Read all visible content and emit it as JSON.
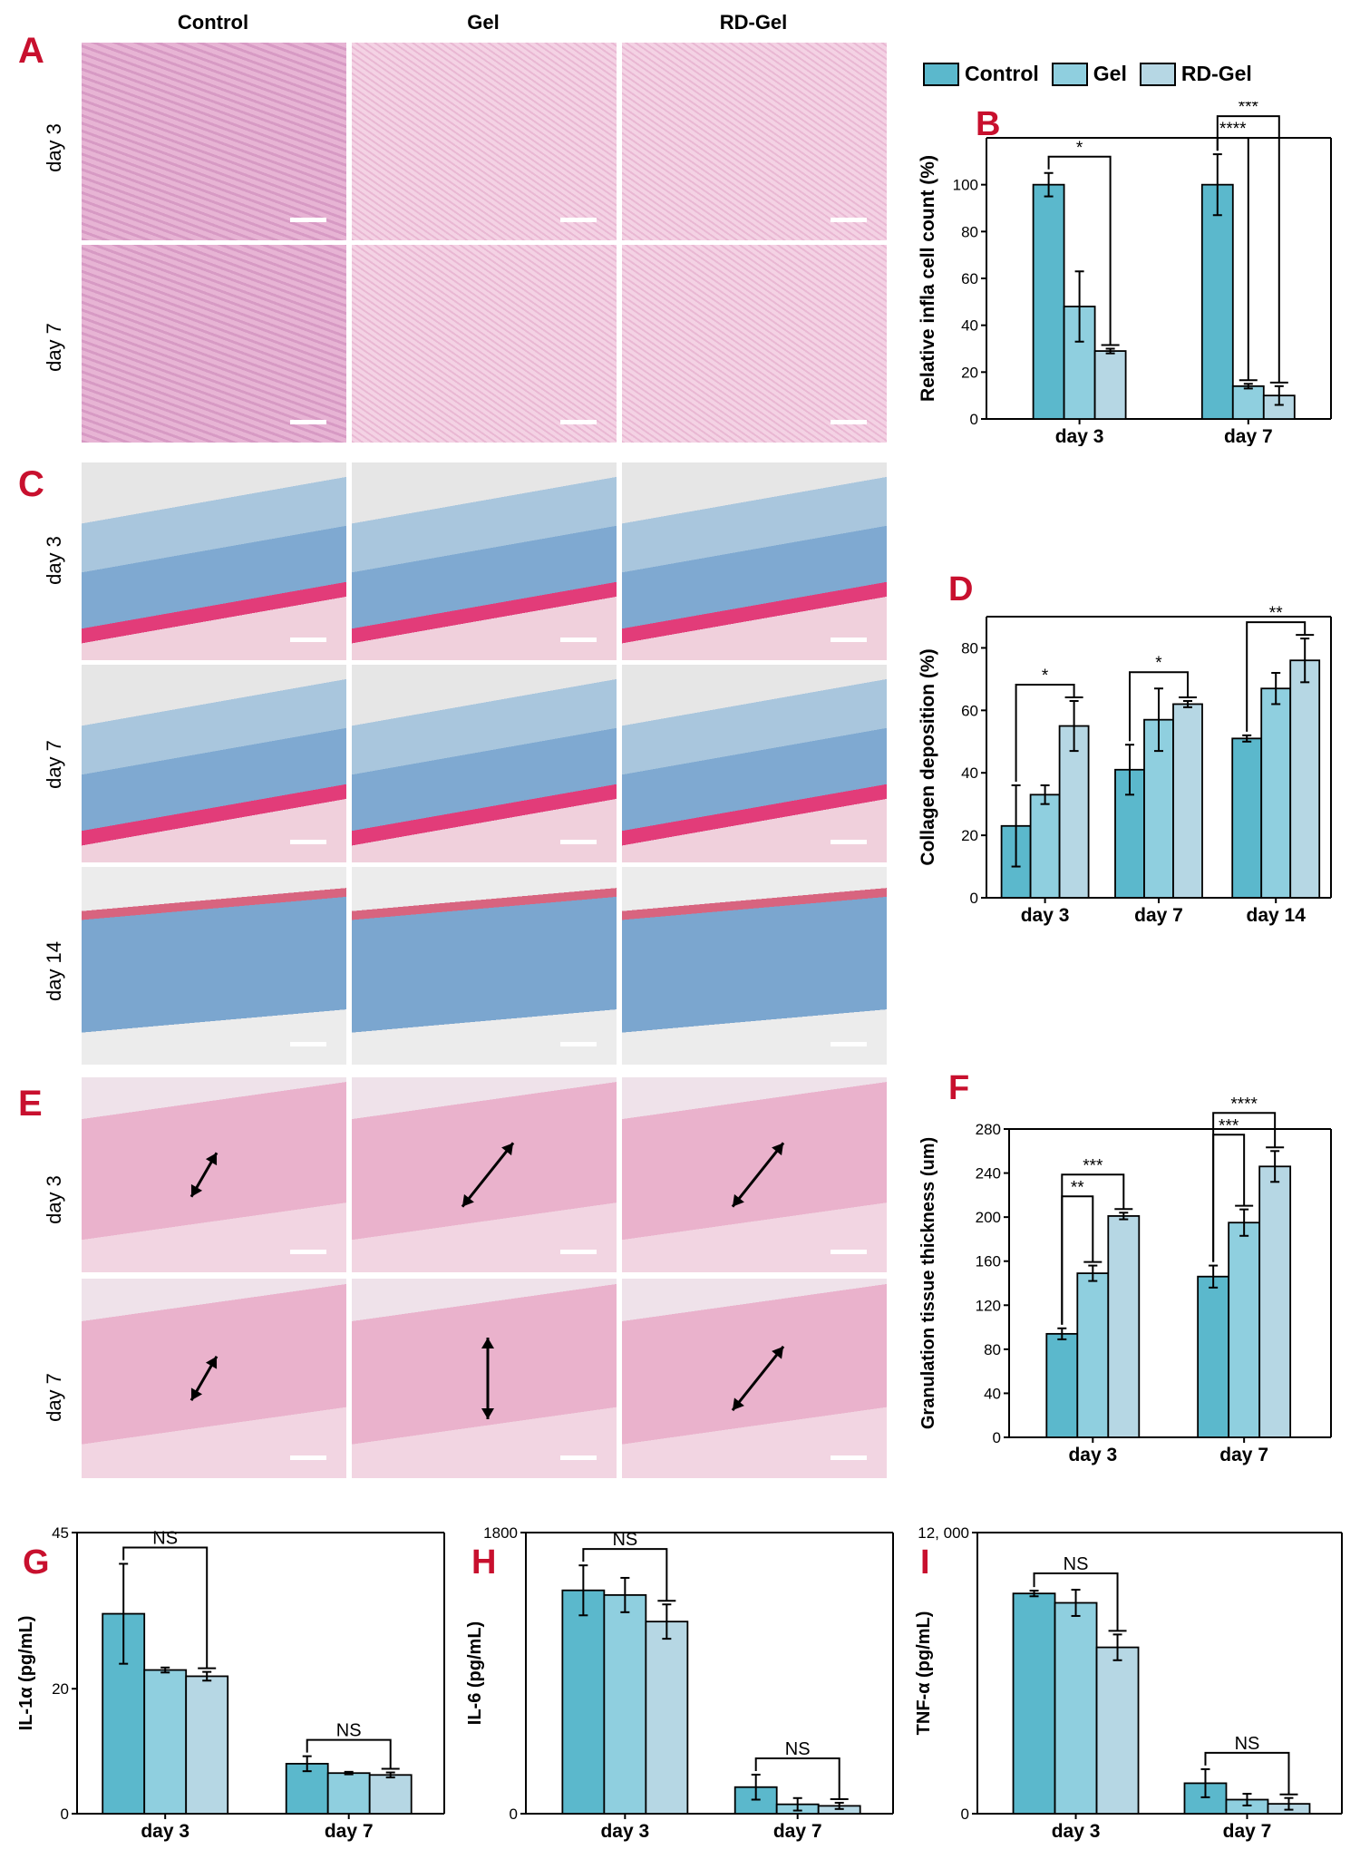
{
  "columns": [
    "Control",
    "Gel",
    "RD-Gel"
  ],
  "panels": {
    "A": {
      "letter": "A",
      "rows": [
        "day 3",
        "day 7"
      ]
    },
    "C": {
      "letter": "C",
      "rows": [
        "day 3",
        "day 7",
        "day 14"
      ]
    },
    "E": {
      "letter": "E",
      "rows": [
        "day 3",
        "day 7"
      ]
    }
  },
  "legend": {
    "items": [
      {
        "label": "Control",
        "color": "#5bb8cc"
      },
      {
        "label": "Gel",
        "color": "#8fcfdf"
      },
      {
        "label": "RD-Gel",
        "color": "#b6d7e4"
      }
    ]
  },
  "colors": {
    "control": "#5bb8cc",
    "gel": "#8fcfdf",
    "rdgel": "#b6d7e4",
    "letter": "#c8102e",
    "he_stain": "#e4a6c6",
    "masson_blue": "#7fa9d1"
  },
  "chart_data": [
    {
      "id": "B",
      "letter": "B",
      "type": "bar",
      "categories": [
        "day 3",
        "day 7"
      ],
      "series": [
        {
          "name": "Control",
          "values": [
            100,
            100
          ],
          "errors": [
            5,
            13
          ]
        },
        {
          "name": "Gel",
          "values": [
            48,
            14
          ],
          "errors": [
            15,
            1
          ]
        },
        {
          "name": "RD-Gel",
          "values": [
            29,
            10
          ],
          "errors": [
            1,
            4
          ]
        }
      ],
      "ylabel": "Relative infla cell count (%)",
      "ylim": [
        0,
        120
      ],
      "yticks": [
        0,
        20,
        40,
        60,
        80,
        100
      ],
      "significance": [
        {
          "text": "*",
          "group": 0,
          "from": 0,
          "to": 2
        },
        {
          "text": "****",
          "group": 1,
          "from": 0,
          "to": 1
        },
        {
          "text": "***",
          "group": 1,
          "from": 0,
          "to": 2
        }
      ]
    },
    {
      "id": "D",
      "letter": "D",
      "type": "bar",
      "categories": [
        "day 3",
        "day 7",
        "day 14"
      ],
      "series": [
        {
          "name": "Control",
          "values": [
            23,
            41,
            51
          ],
          "errors": [
            13,
            8,
            1
          ]
        },
        {
          "name": "Gel",
          "values": [
            33,
            57,
            67
          ],
          "errors": [
            3,
            10,
            5
          ]
        },
        {
          "name": "RD-Gel",
          "values": [
            55,
            62,
            76
          ],
          "errors": [
            8,
            1,
            7
          ]
        }
      ],
      "ylabel": "Collagen deposition (%)",
      "ylim": [
        0,
        90
      ],
      "yticks": [
        0,
        20,
        40,
        60,
        80
      ],
      "significance": [
        {
          "text": "*",
          "group": 0,
          "from": 0,
          "to": 2
        },
        {
          "text": "*",
          "group": 1,
          "from": 0,
          "to": 2
        },
        {
          "text": "**",
          "group": 2,
          "from": 0,
          "to": 2
        }
      ]
    },
    {
      "id": "F",
      "letter": "F",
      "type": "bar",
      "categories": [
        "day 3",
        "day 7"
      ],
      "series": [
        {
          "name": "Control",
          "values": [
            94,
            146
          ],
          "errors": [
            5,
            10
          ]
        },
        {
          "name": "Gel",
          "values": [
            149,
            195
          ],
          "errors": [
            7,
            12
          ]
        },
        {
          "name": "RD-Gel",
          "values": [
            201,
            246
          ],
          "errors": [
            3,
            14
          ]
        }
      ],
      "ylabel": "Granulation tissue thickness (um)",
      "ylim": [
        0,
        280
      ],
      "yticks": [
        0,
        40,
        80,
        120,
        160,
        200,
        240,
        280
      ],
      "significance": [
        {
          "text": "**",
          "group": 0,
          "from": 0,
          "to": 1
        },
        {
          "text": "***",
          "group": 0,
          "from": 0,
          "to": 2
        },
        {
          "text": "***",
          "group": 1,
          "from": 0,
          "to": 1
        },
        {
          "text": "****",
          "group": 1,
          "from": 0,
          "to": 2
        }
      ]
    },
    {
      "id": "G",
      "letter": "G",
      "type": "bar",
      "categories": [
        "day 3",
        "day 7"
      ],
      "series": [
        {
          "name": "Control",
          "values": [
            32,
            8
          ],
          "errors": [
            8,
            1.2
          ]
        },
        {
          "name": "Gel",
          "values": [
            23,
            6.5
          ],
          "errors": [
            0.4,
            0.2
          ]
        },
        {
          "name": "RD-Gel",
          "values": [
            22,
            6.2
          ],
          "errors": [
            0.7,
            0.4
          ]
        }
      ],
      "ylabel": "IL-1α (pg/mL)",
      "ylim": [
        0,
        45
      ],
      "yticks": [
        0,
        20,
        45
      ],
      "significance": [
        {
          "text": "NS",
          "group": 0,
          "from": 0,
          "to": 2
        },
        {
          "text": "NS",
          "group": 1,
          "from": 0,
          "to": 2
        }
      ]
    },
    {
      "id": "H",
      "letter": "H",
      "type": "bar",
      "categories": [
        "day 3",
        "day 7"
      ],
      "series": [
        {
          "name": "Control",
          "values": [
            1430,
            170
          ],
          "errors": [
            160,
            80
          ]
        },
        {
          "name": "Gel",
          "values": [
            1400,
            60
          ],
          "errors": [
            110,
            40
          ]
        },
        {
          "name": "RD-Gel",
          "values": [
            1230,
            50
          ],
          "errors": [
            110,
            20
          ]
        }
      ],
      "ylabel": "IL-6 (pg/mL)",
      "ylim": [
        0,
        1800
      ],
      "yticks": [
        0,
        1800
      ],
      "significance": [
        {
          "text": "NS",
          "group": 0,
          "from": 0,
          "to": 2
        },
        {
          "text": "NS",
          "group": 1,
          "from": 0,
          "to": 2
        }
      ]
    },
    {
      "id": "I",
      "letter": "I",
      "type": "bar",
      "categories": [
        "day 3",
        "day 7"
      ],
      "series": [
        {
          "name": "Control",
          "values": [
            9400,
            1300
          ],
          "errors": [
            120,
            600
          ]
        },
        {
          "name": "Gel",
          "values": [
            9000,
            600
          ],
          "errors": [
            560,
            250
          ]
        },
        {
          "name": "RD-Gel",
          "values": [
            7100,
            420
          ],
          "errors": [
            550,
            250
          ]
        }
      ],
      "ylabel": "TNF-α (pg/mL)",
      "ylim": [
        0,
        12000
      ],
      "yticks": [
        0,
        12000
      ],
      "yticklabels": [
        "0",
        "12, 000"
      ],
      "significance": [
        {
          "text": "NS",
          "group": 0,
          "from": 0,
          "to": 2
        },
        {
          "text": "NS",
          "group": 1,
          "from": 0,
          "to": 2
        }
      ]
    }
  ]
}
